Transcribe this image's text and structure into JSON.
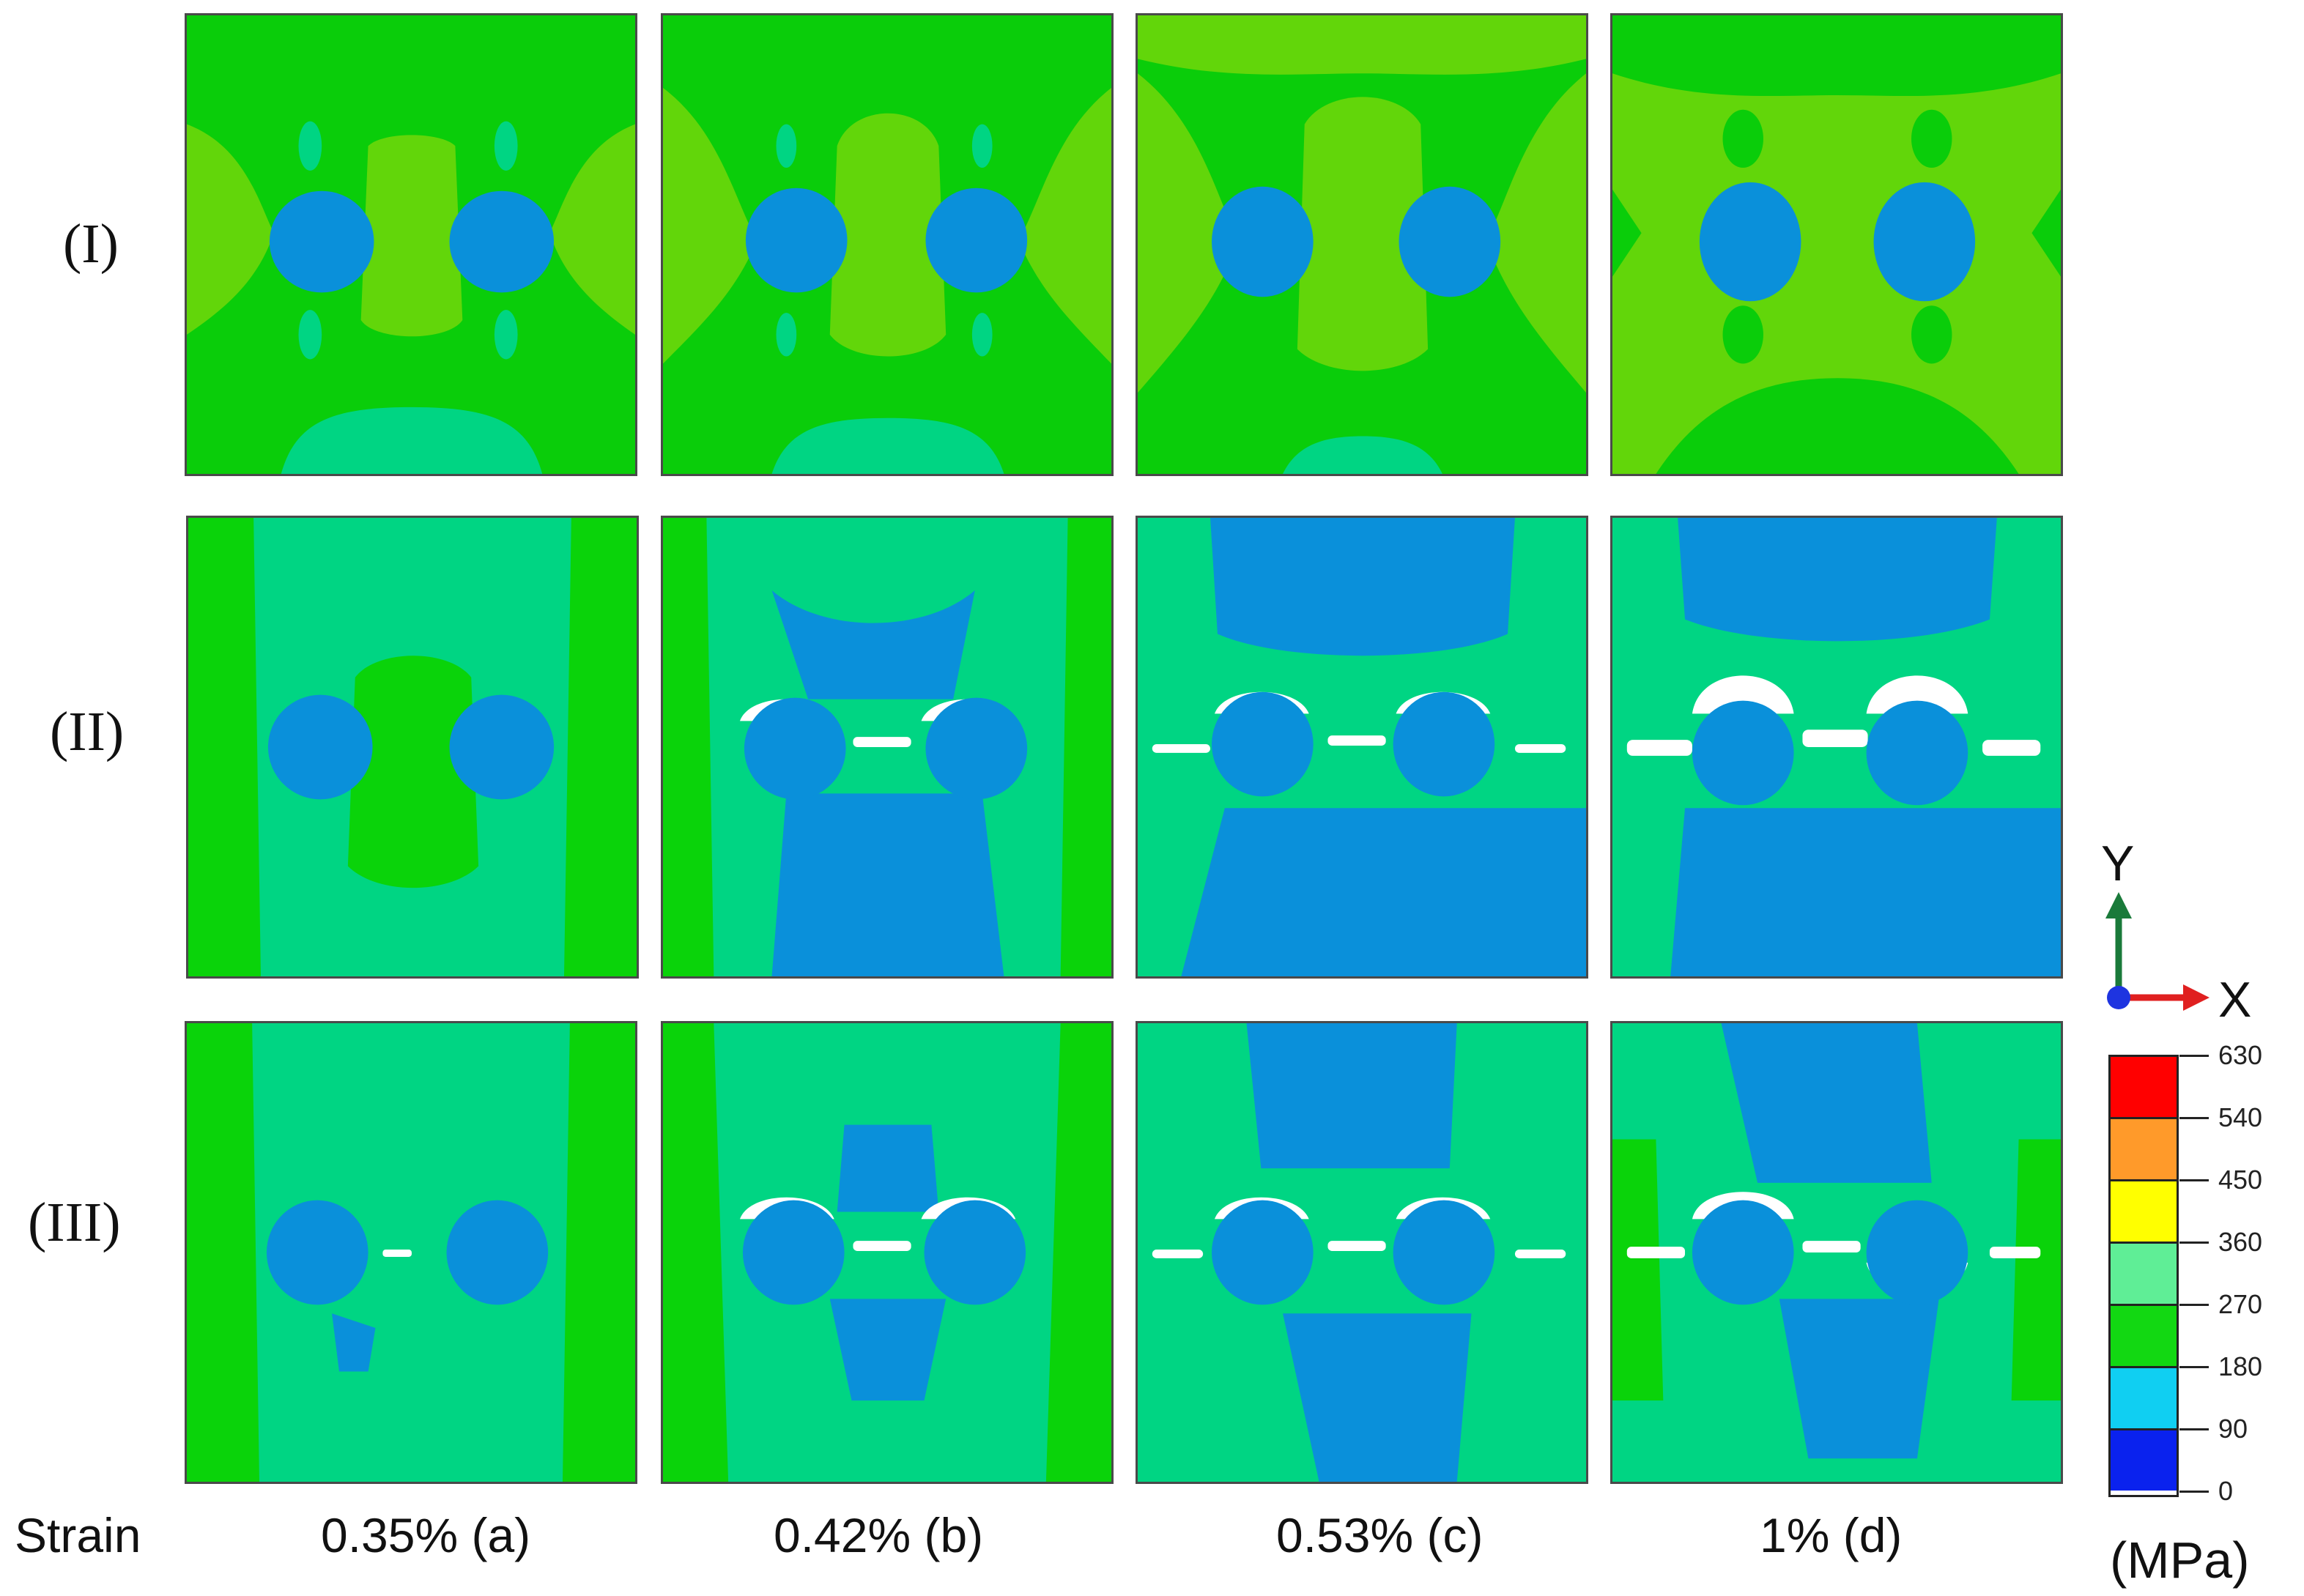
{
  "rows": [
    {
      "label": "(I)"
    },
    {
      "label": "(II)"
    },
    {
      "label": "(III)"
    }
  ],
  "strain": {
    "title": "Strain",
    "columns": [
      "0.35% (a)",
      "0.42% (b)",
      "0.53% (c)",
      "1% (d)"
    ]
  },
  "axes": {
    "y": "Y",
    "x": "X"
  },
  "legend": {
    "unit": "(MPa)",
    "ticks": [
      "630",
      "540",
      "450",
      "360",
      "270",
      "180",
      "90",
      "0"
    ],
    "colors": [
      "#ff0000",
      "#ff9a2a",
      "#ffff00",
      "#5fee96",
      "#12d812",
      "#10cff2",
      "#0a22ee"
    ]
  },
  "contour_colors": {
    "row1_base": "#0acd0a",
    "row1_mid": "#62d60a",
    "light_green": "#00d583",
    "blue": "#0a90da",
    "green": "#0ad30a",
    "void": "#ffffff"
  }
}
